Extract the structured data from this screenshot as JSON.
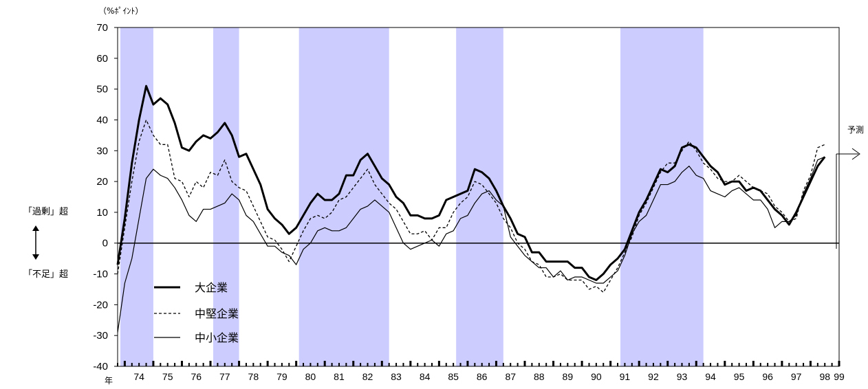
{
  "chart_data": {
    "type": "line",
    "yunit": "（%ﾎﾟｲﾝﾄ）",
    "year_unit": "年",
    "ylim": [
      -40,
      70
    ],
    "yticks": [
      70,
      60,
      50,
      40,
      30,
      20,
      10,
      0,
      -10,
      -20,
      -30,
      -40
    ],
    "x_start_quarter": 1973.75,
    "xticks": [
      "74",
      "75",
      "76",
      "77",
      "78",
      "79",
      "80",
      "81",
      "82",
      "83",
      "84",
      "85",
      "86",
      "87",
      "88",
      "89",
      "90",
      "91",
      "92",
      "93",
      "94",
      "95",
      "96",
      "97",
      "98",
      "99"
    ],
    "shaded_periods": [
      [
        1973.75,
        1975.0
      ],
      [
        1977.0,
        1978.0
      ],
      [
        1980.0,
        1983.25
      ],
      [
        1985.5,
        1987.25
      ],
      [
        1991.25,
        1994.25
      ]
    ],
    "annotations": {
      "upper": "「過剰」超",
      "lower": "「不足」超",
      "forecast": "予測"
    },
    "series": [
      {
        "name": "大企業",
        "style": "bold",
        "values": [
          -7,
          8,
          26,
          40,
          51,
          45,
          47,
          45,
          39,
          31,
          30,
          33,
          35,
          34,
          36,
          39,
          35,
          28,
          29,
          24,
          19,
          11,
          8,
          6,
          3,
          5,
          9,
          13,
          16,
          14,
          14,
          16,
          22,
          22,
          27,
          29,
          25,
          21,
          19,
          15,
          13,
          9,
          9,
          8,
          8,
          9,
          14,
          15,
          16,
          17,
          24,
          23,
          21,
          17,
          12,
          8,
          3,
          2,
          -3,
          -3,
          -6,
          -6,
          -6,
          -6,
          -8,
          -8,
          -11,
          -12,
          -10,
          -7,
          -5,
          -2,
          4,
          10,
          14,
          19,
          24,
          23,
          25,
          31,
          32,
          31,
          28,
          25,
          23,
          19,
          20,
          20,
          17,
          18,
          17,
          14,
          11,
          9,
          6,
          10,
          15,
          20,
          25,
          28
        ]
      },
      {
        "name": "中堅企業",
        "style": "dashed",
        "values": [
          -10,
          5,
          20,
          33,
          40,
          35,
          32,
          32,
          21,
          20,
          15,
          20,
          18,
          23,
          22,
          27,
          20,
          18,
          17,
          12,
          7,
          2,
          1,
          -2,
          -6,
          -1,
          4,
          8,
          9,
          8,
          10,
          14,
          15,
          18,
          21,
          24,
          19,
          16,
          13,
          11,
          7,
          3,
          3,
          4,
          1,
          5,
          5,
          10,
          13,
          15,
          20,
          19,
          16,
          13,
          8,
          5,
          0,
          -2,
          -6,
          -7,
          -11,
          -11,
          -10,
          -12,
          -12,
          -12,
          -15,
          -14,
          -16,
          -12,
          -8,
          -3,
          2,
          9,
          13,
          18,
          23,
          26,
          26,
          30,
          33,
          30,
          26,
          24,
          21,
          20,
          20,
          22,
          20,
          18,
          17,
          16,
          12,
          10,
          7,
          8,
          17,
          22,
          31,
          32
        ]
      },
      {
        "name": "中小企業",
        "style": "thin",
        "values": [
          -29,
          -13,
          -5,
          8,
          21,
          24,
          22,
          21,
          18,
          14,
          9,
          7,
          11,
          11,
          12,
          13,
          16,
          14,
          9,
          7,
          3,
          -1,
          -1,
          -3,
          -4,
          -7,
          -2,
          0,
          4,
          5,
          4,
          4,
          5,
          8,
          11,
          12,
          14,
          12,
          10,
          5,
          0,
          -2,
          -1,
          0,
          1,
          -1,
          3,
          4,
          8,
          9,
          13,
          16,
          17,
          14,
          12,
          2,
          -1,
          -4,
          -6,
          -8,
          -8,
          -11,
          -9,
          -12,
          -11,
          -11,
          -12,
          -13,
          -13,
          -11,
          -9,
          -4,
          3,
          7,
          9,
          14,
          19,
          19,
          20,
          23,
          25,
          22,
          21,
          17,
          16,
          15,
          17,
          18,
          16,
          14,
          14,
          11,
          5,
          7,
          7,
          9,
          16,
          21,
          27,
          28
        ]
      }
    ]
  }
}
